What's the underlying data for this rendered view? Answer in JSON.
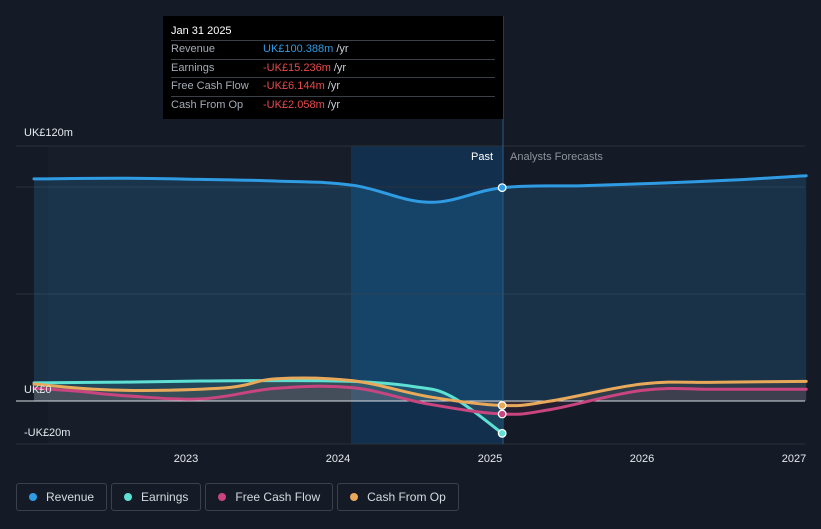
{
  "tooltip": {
    "date": "Jan 31 2025",
    "rows": [
      {
        "label": "Revenue",
        "value": "UK£100.388m",
        "unit": "/yr",
        "color": "#2f9be3"
      },
      {
        "label": "Earnings",
        "value": "-UK£15.236m",
        "unit": "/yr",
        "color": "#e84a4a"
      },
      {
        "label": "Free Cash Flow",
        "value": "-UK£6.144m",
        "unit": "/yr",
        "color": "#e84a4a"
      },
      {
        "label": "Cash From Op",
        "value": "-UK£2.058m",
        "unit": "/yr",
        "color": "#e84a4a"
      }
    ]
  },
  "labels": {
    "past": "Past",
    "forecast": "Analysts Forecasts"
  },
  "legend": [
    {
      "label": "Revenue",
      "color": "#2f9be3"
    },
    {
      "label": "Earnings",
      "color": "#5ee0d3"
    },
    {
      "label": "Free Cash Flow",
      "color": "#c8457f"
    },
    {
      "label": "Cash From Op",
      "color": "#e8a95a"
    }
  ],
  "chart_data": {
    "type": "line",
    "y_unit": "UK£m",
    "ylim": [
      -20,
      120
    ],
    "y_tick_labels": [
      {
        "value": 120,
        "label": "UK£120m"
      },
      {
        "value": 0,
        "label": "UK£0"
      },
      {
        "value": -20,
        "label": "-UK£20m"
      }
    ],
    "x_tick_labels": [
      "2023",
      "2024",
      "2025",
      "2026",
      "2027"
    ],
    "x_ticks": [
      2023.0,
      2024.0,
      2025.0,
      2026.0,
      2027.0
    ],
    "xlim": [
      2021.8,
      2027.08
    ],
    "past_end": 2025.08,
    "shaded_start": 2024.08,
    "series": [
      {
        "name": "Revenue",
        "color": "#2f9be3",
        "x": [
          2022.0,
          2022.6,
          2023.1,
          2023.6,
          2024.1,
          2024.6,
          2025.08,
          2025.6,
          2026.1,
          2026.6,
          2027.08
        ],
        "values": [
          104.5,
          104.8,
          104.3,
          103.5,
          101.5,
          93.5,
          100.4,
          101.3,
          102.5,
          104.0,
          106.0
        ]
      },
      {
        "name": "Earnings",
        "color": "#5ee0d3",
        "x": [
          2022.0,
          2022.6,
          2023.1,
          2023.6,
          2024.1,
          2024.5,
          2024.75,
          2025.08
        ],
        "values": [
          8.5,
          8.9,
          9.4,
          9.6,
          9.2,
          6.8,
          2.0,
          -15.2
        ]
      },
      {
        "name": "Free Cash Flow",
        "color": "#c8457f",
        "x": [
          2022.0,
          2022.3,
          2022.6,
          2023.1,
          2023.6,
          2024.1,
          2024.6,
          2025.08,
          2025.4,
          2026.0,
          2026.5,
          2027.08
        ],
        "values": [
          6.0,
          4.5,
          2.5,
          1.0,
          6.0,
          6.2,
          -1.5,
          -6.1,
          -4.0,
          5.0,
          5.5,
          5.5
        ]
      },
      {
        "name": "Cash From Op",
        "color": "#e8a95a",
        "x": [
          2022.0,
          2022.4,
          2022.8,
          2023.3,
          2023.6,
          2024.1,
          2024.6,
          2025.08,
          2025.4,
          2026.0,
          2026.5,
          2027.08
        ],
        "values": [
          8.0,
          5.5,
          5.0,
          6.5,
          10.5,
          9.5,
          2.0,
          -2.1,
          0.0,
          8.0,
          8.8,
          9.2
        ]
      }
    ],
    "markers": [
      {
        "series": "Revenue",
        "x": 2025.08,
        "y": 100.4
      },
      {
        "series": "Earnings",
        "x": 2025.08,
        "y": -15.2
      },
      {
        "series": "Free Cash Flow",
        "x": 2025.08,
        "y": -6.1
      },
      {
        "series": "Cash From Op",
        "x": 2025.08,
        "y": -2.1
      }
    ],
    "grid": true
  }
}
